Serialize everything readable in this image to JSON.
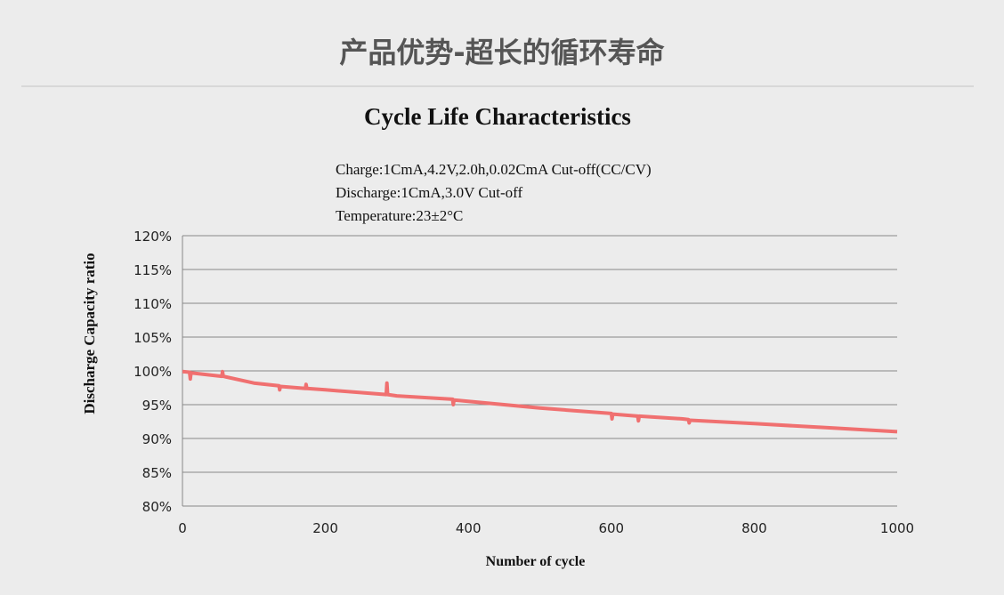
{
  "header": {
    "title": "产品优势-超长的循环寿命"
  },
  "chart_data": {
    "type": "line",
    "title": "Cycle Life Characteristics",
    "annotations": [
      "Charge:1CmA,4.2V,2.0h,0.02CmA Cut-off(CC/CV)",
      "Discharge:1CmA,3.0V Cut-off",
      "Temperature:23±2°C"
    ],
    "xlabel": "Number of cycle",
    "ylabel": "Discharge Capacity ratio",
    "xlim": [
      0,
      1000
    ],
    "ylim": [
      80,
      120
    ],
    "xticks": [
      "0",
      "200",
      "400",
      "600",
      "800",
      "1000"
    ],
    "yticks": [
      "80%",
      "85%",
      "90%",
      "95%",
      "100%",
      "105%",
      "110%",
      "115%",
      "120%"
    ],
    "grid": "horizontal",
    "color": "#f07070",
    "x": [
      0,
      10,
      11,
      12,
      55,
      56,
      57,
      100,
      135,
      136,
      137,
      172,
      173,
      174,
      200,
      285,
      286,
      287,
      300,
      378,
      379,
      380,
      400,
      500,
      600,
      601,
      602,
      637,
      638,
      639,
      700,
      708,
      709,
      710,
      800,
      900,
      1000
    ],
    "y": [
      99.9,
      99.8,
      98.8,
      99.7,
      99.2,
      99.9,
      99.2,
      98.2,
      97.8,
      97.2,
      97.7,
      97.4,
      98.0,
      97.4,
      97.2,
      96.5,
      98.2,
      96.5,
      96.3,
      95.8,
      95.0,
      95.7,
      95.5,
      94.5,
      93.7,
      92.9,
      93.6,
      93.3,
      92.6,
      93.3,
      92.9,
      92.8,
      92.3,
      92.7,
      92.2,
      91.6,
      91.0
    ]
  }
}
